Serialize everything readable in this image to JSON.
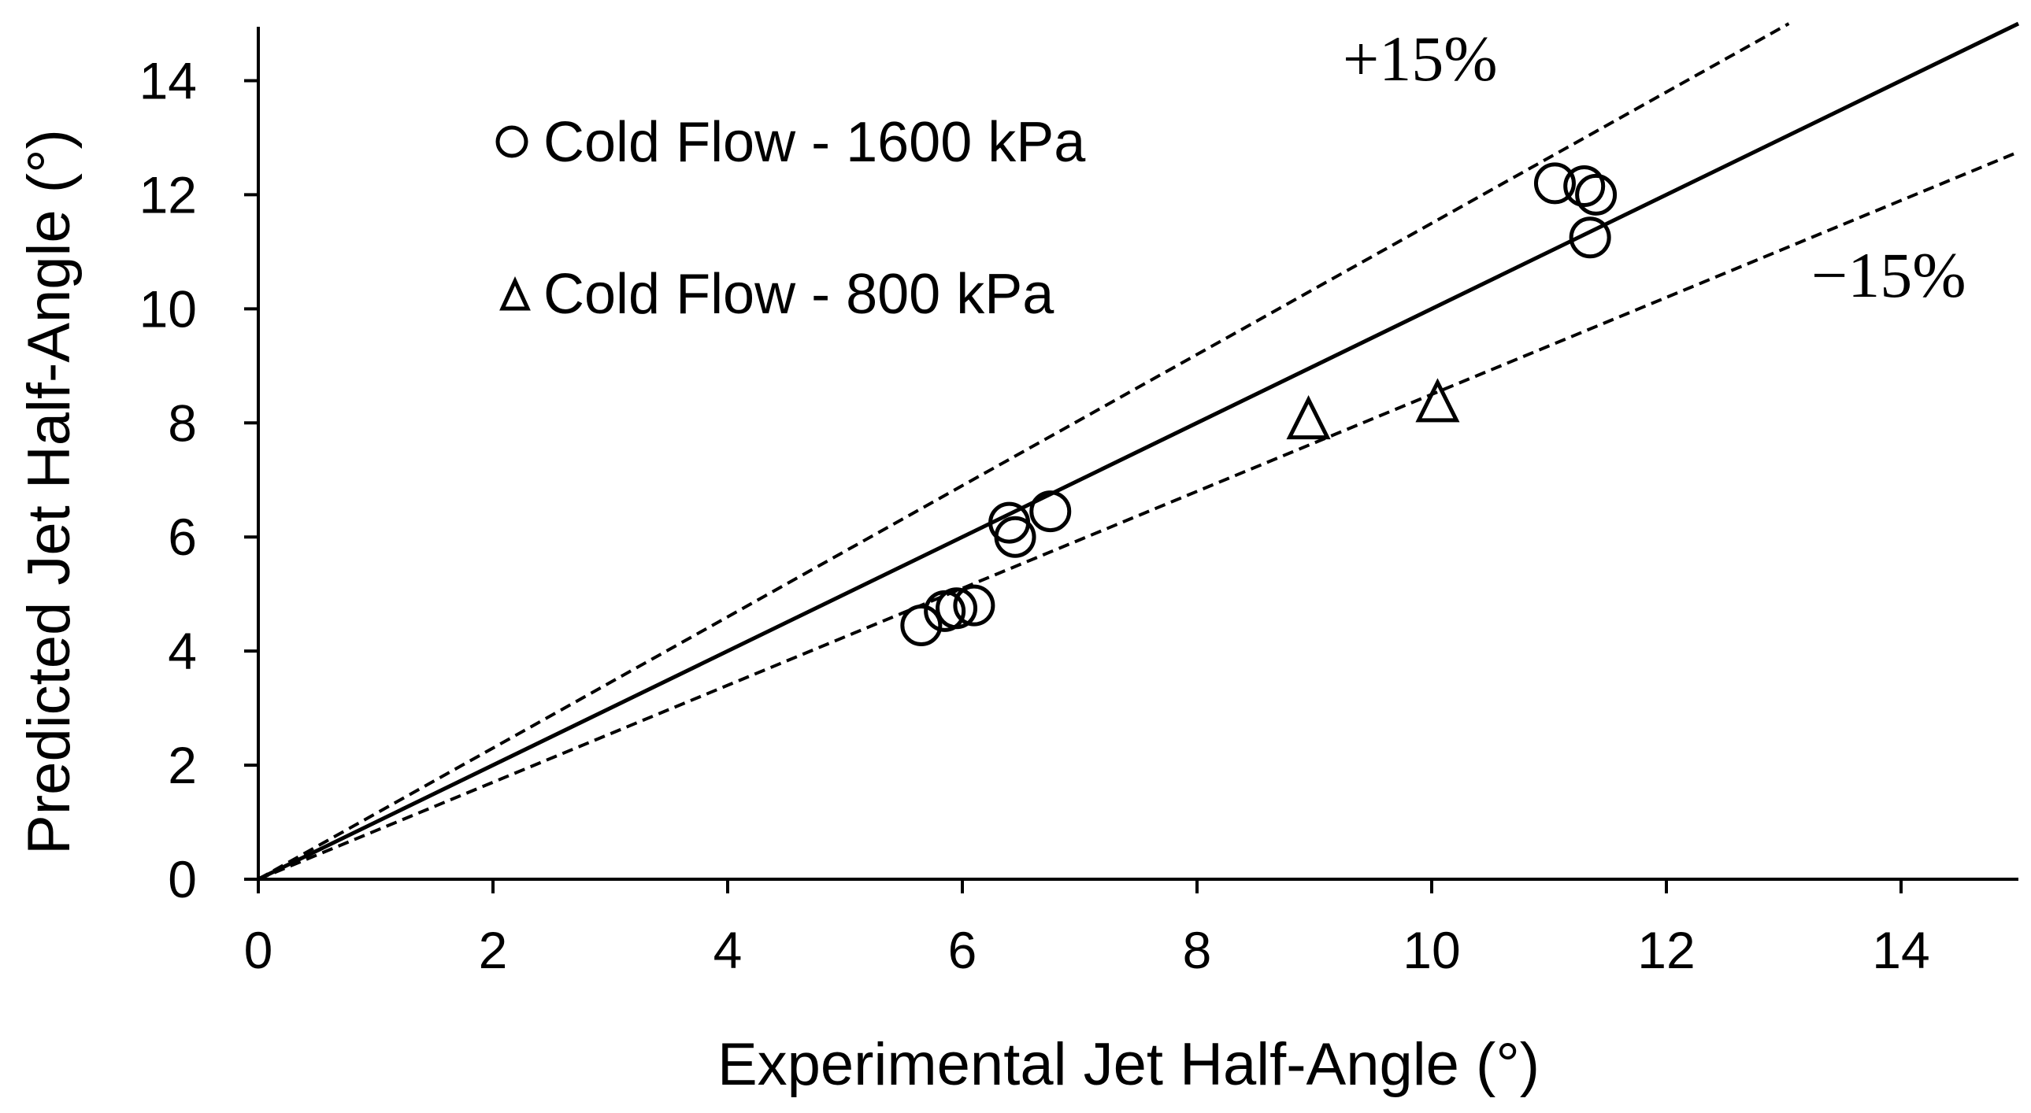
{
  "chart_data": {
    "type": "scatter",
    "xlabel": "Experimental Jet Half-Angle (°)",
    "ylabel": "Predicted Jet Half-Angle (°)",
    "xlim": [
      0,
      15
    ],
    "ylim": [
      0,
      15
    ],
    "xticks": [
      0,
      2,
      4,
      6,
      8,
      10,
      12,
      14
    ],
    "yticks": [
      0,
      2,
      4,
      6,
      8,
      10,
      12,
      14
    ],
    "grid": false,
    "legend_position": "top-left",
    "series": [
      {
        "name": "Cold Flow - 1600 kPa",
        "marker": "circle",
        "points": [
          {
            "x": 5.65,
            "y": 4.45
          },
          {
            "x": 5.85,
            "y": 4.7
          },
          {
            "x": 5.95,
            "y": 4.75
          },
          {
            "x": 6.1,
            "y": 4.8
          },
          {
            "x": 6.4,
            "y": 6.25
          },
          {
            "x": 6.45,
            "y": 6.0
          },
          {
            "x": 6.75,
            "y": 6.45
          },
          {
            "x": 11.05,
            "y": 12.2
          },
          {
            "x": 11.3,
            "y": 12.15
          },
          {
            "x": 11.4,
            "y": 12.0
          },
          {
            "x": 11.35,
            "y": 11.25
          }
        ]
      },
      {
        "name": "Cold Flow - 800 kPa",
        "marker": "triangle",
        "points": [
          {
            "x": 8.95,
            "y": 8.05
          },
          {
            "x": 10.05,
            "y": 8.35
          }
        ]
      }
    ],
    "reference_lines": [
      {
        "name": "1:1",
        "style": "solid",
        "slope": 1.0
      },
      {
        "name": "+15%",
        "label": "+15%",
        "style": "dashed",
        "slope": 1.15
      },
      {
        "name": "-15%",
        "label": "−15%",
        "style": "dashed",
        "slope": 0.85
      }
    ]
  }
}
